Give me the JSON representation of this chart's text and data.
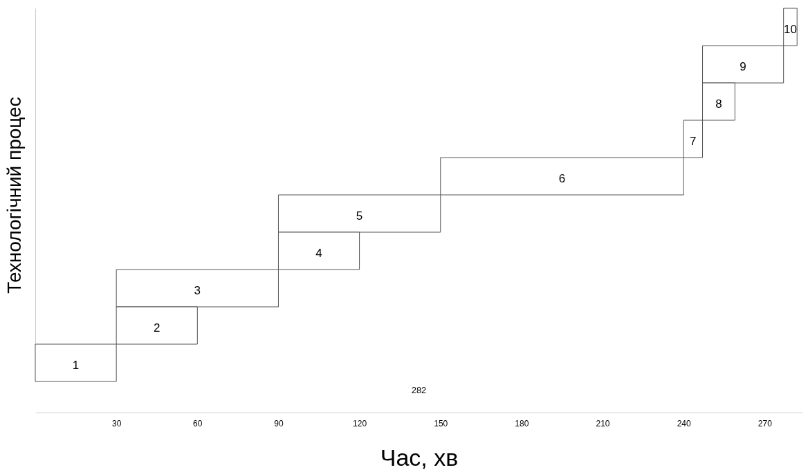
{
  "chart_data": {
    "type": "bar",
    "orientation": "horizontal",
    "xlabel": "Час, хв",
    "ylabel": "Технологічний процес",
    "categories": [
      "10",
      "9",
      "8",
      "7",
      "6",
      "5",
      "4",
      "3",
      "2",
      "1"
    ],
    "base": [
      277,
      247,
      247,
      240,
      150,
      90,
      90,
      30,
      30,
      0
    ],
    "values": [
      5,
      30,
      12,
      7,
      90,
      60,
      30,
      60,
      30,
      30
    ],
    "color": "#ffffff",
    "xlim": [
      0,
      284
    ],
    "xticks": [
      30,
      60,
      90,
      120,
      150,
      180,
      210,
      240,
      270
    ],
    "tick_labels": "x",
    "grid": false,
    "annotations": [
      "282"
    ]
  }
}
